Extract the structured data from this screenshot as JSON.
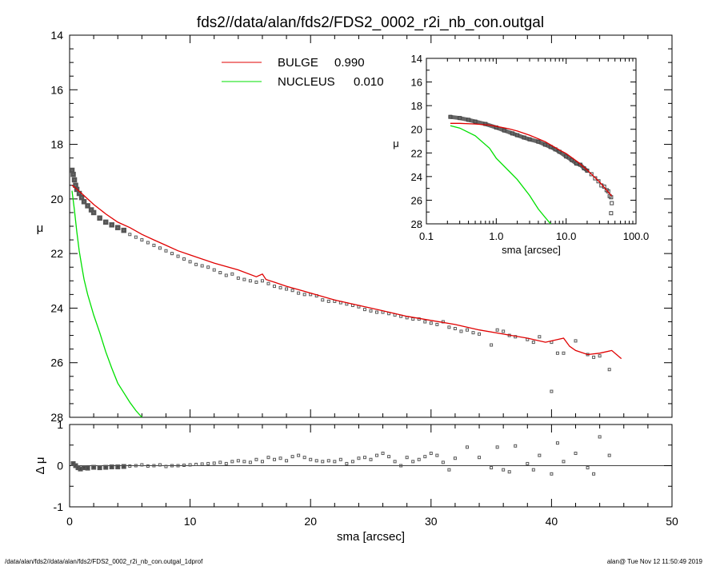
{
  "title": "fds2//data/alan/fds2/FDS2_0002_r2i_nb_con.outgal",
  "footer_left": "/data/alan/fds2//data/alan/fds2/FDS2_0002_r2i_nb_con.outgal_1dprof",
  "footer_right": "alan@  Tue Nov 12 11:50:49 2019",
  "colors": {
    "bulge": "#e00000",
    "nucleus": "#00e000",
    "data": "#555555",
    "zero_line": "#000000"
  },
  "chart_data": [
    {
      "type": "line",
      "panel": "main",
      "xlabel": "sma [arcsec]",
      "ylabel": "μ",
      "xlim": [
        0,
        50
      ],
      "ylim": [
        28,
        14
      ],
      "x_ticks": [
        "0",
        "10",
        "20",
        "30",
        "40",
        "50"
      ],
      "y_ticks": [
        "14",
        "16",
        "18",
        "20",
        "22",
        "24",
        "26",
        "28"
      ],
      "legend": [
        {
          "label": "BULGE",
          "value": "0.990",
          "color": "#e00000"
        },
        {
          "label": "NUCLEUS",
          "value": "0.010",
          "color": "#00e000"
        }
      ],
      "legend_position": "top-center",
      "series": [
        {
          "name": "BULGE",
          "color": "#e00000",
          "x": [
            0.2,
            0.5,
            1.0,
            1.5,
            2.0,
            3.0,
            4.0,
            5.0,
            6.0,
            7.0,
            8.0,
            9.0,
            10.0,
            12.0,
            14.0,
            15.5,
            16.0,
            16.3,
            17.0,
            18.0,
            20.0,
            22.0,
            24.0,
            26.0,
            28.0,
            30.0,
            32.0,
            34.0,
            36.0,
            38.0,
            39.5,
            41.0,
            41.5,
            42.0,
            43.0,
            44.0,
            45.0,
            45.8
          ],
          "y": [
            19.5,
            19.6,
            19.8,
            20.0,
            20.2,
            20.55,
            20.85,
            21.05,
            21.3,
            21.5,
            21.7,
            21.9,
            22.05,
            22.35,
            22.6,
            22.85,
            22.75,
            22.95,
            23.05,
            23.2,
            23.45,
            23.7,
            23.9,
            24.1,
            24.3,
            24.45,
            24.6,
            24.8,
            24.95,
            25.1,
            25.25,
            25.1,
            25.4,
            25.55,
            25.7,
            25.65,
            25.55,
            25.85
          ]
        },
        {
          "name": "NUCLEUS",
          "color": "#00e000",
          "x": [
            0.2,
            0.4,
            0.6,
            0.8,
            1.0,
            1.2,
            1.5,
            2.0,
            2.5,
            3.0,
            3.5,
            4.0,
            4.5,
            5.0,
            5.5,
            6.0,
            6.2
          ],
          "y": [
            19.7,
            20.4,
            21.2,
            21.9,
            22.45,
            22.95,
            23.5,
            24.25,
            24.9,
            25.6,
            26.2,
            26.75,
            27.1,
            27.45,
            27.75,
            28.0,
            28.1
          ]
        },
        {
          "name": "data",
          "color": "#555555",
          "x": [
            0.2,
            0.3,
            0.4,
            0.5,
            0.6,
            0.8,
            1.0,
            1.2,
            1.5,
            1.8,
            2.0,
            2.5,
            3.0,
            3.5,
            4.0,
            4.5,
            5.0,
            5.5,
            6.0,
            6.5,
            7.0,
            7.5,
            8.0,
            8.5,
            9.0,
            9.5,
            10.0,
            10.5,
            11.0,
            11.5,
            12.0,
            12.5,
            13.0,
            13.5,
            14.0,
            14.5,
            15.0,
            15.5,
            16.0,
            16.5,
            17.0,
            17.5,
            18.0,
            18.5,
            19.0,
            19.5,
            20.0,
            20.5,
            21.0,
            21.5,
            22.0,
            22.5,
            23.0,
            23.5,
            24.0,
            24.5,
            25.0,
            25.5,
            26.0,
            26.5,
            27.0,
            27.5,
            28.0,
            28.5,
            29.0,
            29.5,
            30.0,
            30.5,
            31.0,
            31.5,
            32.0,
            32.5,
            33.0,
            33.5,
            34.0,
            35.0,
            35.5,
            36.0,
            36.5,
            37.0,
            38.0,
            38.5,
            39.0,
            40.0,
            40.5,
            41.0,
            42.0,
            43.0,
            43.5,
            44.0,
            44.8
          ],
          "y": [
            18.95,
            19.1,
            19.3,
            19.5,
            19.65,
            19.8,
            19.95,
            20.1,
            20.25,
            20.4,
            20.5,
            20.7,
            20.85,
            20.95,
            21.05,
            21.15,
            21.3,
            21.4,
            21.5,
            21.6,
            21.7,
            21.8,
            21.9,
            22.0,
            22.1,
            22.2,
            22.3,
            22.4,
            22.45,
            22.5,
            22.6,
            22.7,
            22.8,
            22.75,
            22.9,
            22.95,
            23.0,
            23.05,
            23.0,
            23.1,
            23.2,
            23.25,
            23.3,
            23.35,
            23.45,
            23.5,
            23.5,
            23.55,
            23.7,
            23.75,
            23.75,
            23.8,
            23.85,
            23.9,
            23.95,
            24.05,
            24.1,
            24.15,
            24.15,
            24.2,
            24.25,
            24.3,
            24.35,
            24.4,
            24.4,
            24.5,
            24.55,
            24.6,
            24.5,
            24.7,
            24.75,
            24.85,
            24.8,
            24.9,
            24.95,
            25.35,
            24.8,
            24.85,
            25.0,
            25.05,
            25.15,
            25.25,
            25.05,
            25.25,
            25.65,
            25.65,
            25.2,
            25.7,
            25.8,
            25.75,
            26.25
          ]
        }
      ],
      "outliers": {
        "x": [
          40.0
        ],
        "y": [
          27.05
        ]
      }
    },
    {
      "type": "scatter",
      "panel": "residual",
      "xlabel": "sma [arcsec]",
      "ylabel": "Δ μ",
      "xlim": [
        0,
        50
      ],
      "ylim": [
        -1,
        1
      ],
      "x_ticks": [
        "0",
        "10",
        "20",
        "30",
        "40",
        "50"
      ],
      "y_ticks": [
        "1",
        "0",
        "-1"
      ],
      "series": [
        {
          "name": "residual",
          "color": "#555555",
          "x": [
            0.3,
            0.5,
            0.7,
            0.9,
            1.2,
            1.5,
            2.0,
            2.5,
            3.0,
            3.5,
            4.0,
            4.5,
            5.0,
            5.5,
            6.0,
            6.5,
            7.0,
            7.5,
            8.0,
            8.5,
            9.0,
            9.5,
            10.0,
            10.5,
            11.0,
            11.5,
            12.0,
            12.5,
            13.0,
            13.5,
            14.0,
            14.5,
            15.0,
            15.5,
            16.0,
            16.5,
            17.0,
            17.5,
            18.0,
            18.5,
            19.0,
            19.5,
            20.0,
            20.5,
            21.0,
            21.5,
            22.0,
            22.5,
            23.0,
            23.5,
            24.0,
            24.5,
            25.0,
            25.5,
            26.0,
            26.5,
            27.0,
            27.5,
            28.0,
            28.5,
            29.0,
            29.5,
            30.0,
            30.5,
            31.0,
            31.5,
            32.0,
            33.0,
            34.0,
            35.0,
            35.5,
            36.0,
            36.5,
            37.0,
            38.0,
            38.5,
            39.0,
            40.0,
            40.5,
            41.0,
            42.0,
            43.0,
            43.5,
            44.0,
            44.8
          ],
          "y": [
            0.05,
            0.0,
            -0.05,
            -0.08,
            -0.05,
            -0.06,
            -0.04,
            -0.05,
            -0.04,
            -0.03,
            -0.03,
            -0.02,
            -0.01,
            0.0,
            0.02,
            -0.01,
            0.0,
            0.02,
            -0.02,
            0.0,
            0.0,
            0.01,
            0.02,
            0.03,
            0.04,
            0.05,
            0.06,
            0.08,
            0.05,
            0.1,
            0.12,
            0.1,
            0.08,
            0.15,
            0.1,
            0.2,
            0.15,
            0.18,
            0.12,
            0.22,
            0.25,
            0.2,
            0.15,
            0.12,
            0.1,
            0.12,
            0.1,
            0.15,
            0.05,
            0.1,
            0.18,
            0.2,
            0.15,
            0.25,
            0.3,
            0.22,
            0.1,
            0.0,
            0.2,
            0.1,
            0.15,
            0.22,
            0.3,
            0.25,
            0.08,
            -0.1,
            0.18,
            0.45,
            0.2,
            -0.05,
            0.45,
            -0.1,
            -0.15,
            0.48,
            0.05,
            -0.1,
            0.25,
            -0.2,
            0.55,
            0.1,
            0.3,
            -0.05,
            -0.2,
            0.7,
            0.25
          ]
        }
      ],
      "reference_line_y": 0
    },
    {
      "type": "line",
      "panel": "inset",
      "xlabel": "sma [arcsec]",
      "ylabel": "μ",
      "x_scale": "log",
      "xlim": [
        0.1,
        100
      ],
      "ylim": [
        28,
        14
      ],
      "x_ticks": [
        "0.1",
        "1.0",
        "10.0",
        "100.0"
      ],
      "y_ticks": [
        "14",
        "16",
        "18",
        "20",
        "22",
        "24",
        "26",
        "28"
      ],
      "series": [
        {
          "name": "BULGE",
          "color": "#e00000",
          "x": [
            0.22,
            0.3,
            0.5,
            0.8,
            1.0,
            1.5,
            2.0,
            3.0,
            5.0,
            8.0,
            10.0,
            15.0,
            20.0,
            30.0,
            45.0
          ],
          "y": [
            19.5,
            19.5,
            19.55,
            19.65,
            19.75,
            19.95,
            20.15,
            20.5,
            21.05,
            21.75,
            22.05,
            22.8,
            23.45,
            24.45,
            25.65
          ]
        },
        {
          "name": "NUCLEUS",
          "color": "#00e000",
          "x": [
            0.22,
            0.3,
            0.5,
            0.8,
            1.0,
            1.5,
            2.0,
            3.0,
            4.0,
            5.0,
            6.2
          ],
          "y": [
            19.7,
            19.9,
            20.55,
            21.6,
            22.45,
            23.5,
            24.25,
            25.6,
            26.75,
            27.45,
            28.1
          ]
        },
        {
          "name": "data",
          "color": "#555555",
          "x": [
            0.22,
            0.3,
            0.4,
            0.5,
            0.7,
            1.0,
            1.3,
            1.7,
            2.0,
            2.5,
            3.0,
            4.0,
            5.0,
            6.0,
            7.0,
            8.0,
            10.0,
            12.0,
            14.0,
            16.0,
            18.0,
            20.0,
            23.0,
            26.0,
            29.0,
            32.0,
            35.0,
            38.0,
            40.0,
            42.0,
            44.0,
            45.0
          ],
          "y": [
            18.95,
            19.05,
            19.2,
            19.35,
            19.55,
            19.85,
            20.1,
            20.35,
            20.5,
            20.7,
            20.85,
            21.05,
            21.3,
            21.5,
            21.7,
            21.9,
            22.3,
            22.6,
            22.9,
            23.0,
            23.3,
            23.5,
            23.8,
            24.15,
            24.4,
            24.75,
            24.85,
            25.15,
            25.25,
            25.65,
            25.75,
            26.25
          ]
        }
      ],
      "outliers": {
        "x": [
          44.0
        ],
        "y": [
          27.1
        ]
      }
    }
  ]
}
